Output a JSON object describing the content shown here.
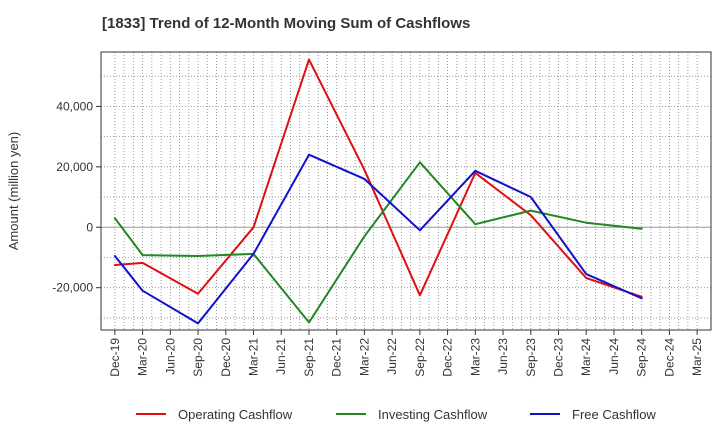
{
  "chart_data": {
    "type": "line",
    "title": "[1833]  Trend of 12-Month Moving Sum of Cashflows",
    "xlabel": "",
    "ylabel": "Amount (million yen)",
    "ylim": [
      -34000,
      58000
    ],
    "yticks": [
      {
        "value": -20000,
        "label": "-20,000"
      },
      {
        "value": 0,
        "label": "0"
      },
      {
        "value": 20000,
        "label": "20,000"
      },
      {
        "value": 40000,
        "label": "40,000"
      }
    ],
    "x": [
      "Dec-19",
      "Mar-20",
      "Jun-20",
      "Sep-20",
      "Dec-20",
      "Mar-21",
      "Jun-21",
      "Sep-21",
      "Dec-21",
      "Mar-22",
      "Jun-22",
      "Sep-22",
      "Dec-22",
      "Mar-23",
      "Jun-23",
      "Sep-23",
      "Dec-23",
      "Mar-24",
      "Jun-24",
      "Sep-24",
      "Dec-24",
      "Mar-25"
    ],
    "grid": true,
    "legend_position": "bottom",
    "series": [
      {
        "name": "Operating Cashflow",
        "color": "#dd1111",
        "values": [
          -12500,
          -11800,
          null,
          -22000,
          null,
          0,
          null,
          55500,
          null,
          19000,
          null,
          -22500,
          null,
          18000,
          null,
          4000,
          null,
          -16800,
          null,
          -23000,
          null,
          null
        ]
      },
      {
        "name": "Investing Cashflow",
        "color": "#228822",
        "values": [
          3000,
          -9200,
          null,
          -9500,
          null,
          -8800,
          null,
          -31500,
          null,
          -3000,
          null,
          21500,
          null,
          1000,
          null,
          5500,
          null,
          1500,
          null,
          -500,
          null,
          null
        ]
      },
      {
        "name": "Free Cashflow",
        "color": "#1111cc",
        "values": [
          -9500,
          -21000,
          null,
          -31800,
          null,
          -8800,
          null,
          24000,
          null,
          16000,
          null,
          -1000,
          null,
          18700,
          null,
          10000,
          null,
          -15500,
          null,
          -23500,
          null,
          null
        ]
      }
    ]
  }
}
